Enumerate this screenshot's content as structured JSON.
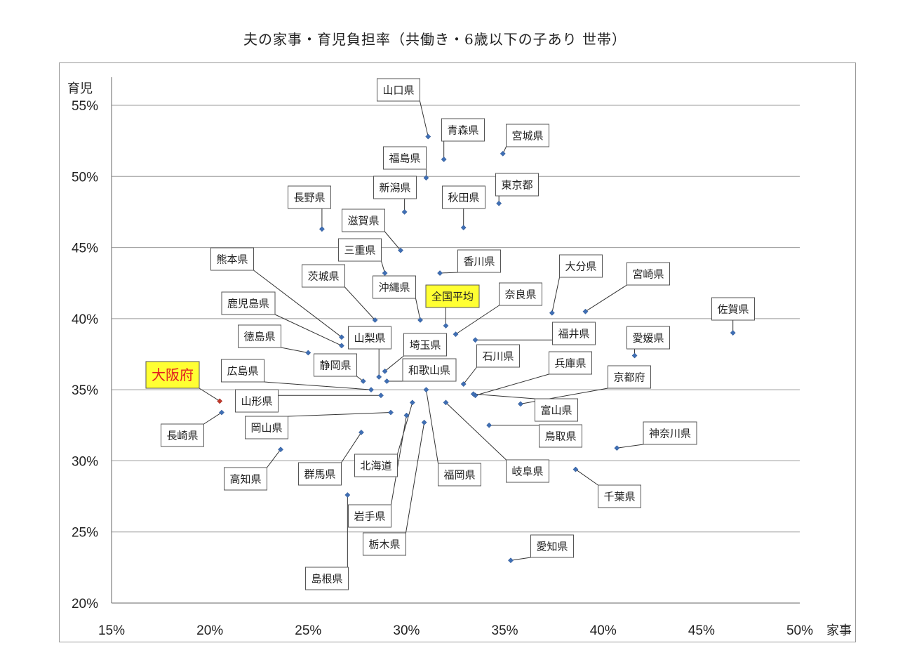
{
  "chart_data": {
    "type": "scatter",
    "title": "夫の家事・育児負担率（共働き・6歳以下の子あり 世帯）",
    "xlabel": "家事",
    "ylabel": "育児",
    "xlim": [
      15,
      50
    ],
    "ylim": [
      20,
      55
    ],
    "x_ticks": [
      15,
      20,
      25,
      30,
      35,
      40,
      45,
      50
    ],
    "y_ticks": [
      20,
      25,
      30,
      35,
      40,
      45,
      50,
      55
    ],
    "x_tick_labels": [
      "15%",
      "20%",
      "25%",
      "30%",
      "35%",
      "40%",
      "45%",
      "50%"
    ],
    "y_tick_labels": [
      "20%",
      "25%",
      "30%",
      "35%",
      "40%",
      "45%",
      "50%",
      "55%"
    ],
    "grid": "horizontal",
    "points": [
      {
        "name": "山口県",
        "x": 31.1,
        "y": 52.8
      },
      {
        "name": "青森県",
        "x": 31.9,
        "y": 51.2
      },
      {
        "name": "宮城県",
        "x": 34.9,
        "y": 51.6
      },
      {
        "name": "福島県",
        "x": 31.0,
        "y": 49.9
      },
      {
        "name": "新潟県",
        "x": 29.9,
        "y": 47.5
      },
      {
        "name": "東京都",
        "x": 34.7,
        "y": 48.1
      },
      {
        "name": "秋田県",
        "x": 32.9,
        "y": 46.4
      },
      {
        "name": "長野県",
        "x": 25.7,
        "y": 46.3
      },
      {
        "name": "滋賀県",
        "x": 29.7,
        "y": 44.8
      },
      {
        "name": "三重県",
        "x": 28.9,
        "y": 43.2
      },
      {
        "name": "香川県",
        "x": 31.7,
        "y": 43.2
      },
      {
        "name": "熊本県",
        "x": 26.7,
        "y": 38.7
      },
      {
        "name": "茨城県",
        "x": 28.4,
        "y": 39.9
      },
      {
        "name": "沖縄県",
        "x": 30.7,
        "y": 39.9
      },
      {
        "name": "全国平均",
        "x": 32.0,
        "y": 39.5
      },
      {
        "name": "奈良県",
        "x": 32.5,
        "y": 38.9
      },
      {
        "name": "大分県",
        "x": 37.4,
        "y": 40.4
      },
      {
        "name": "宮崎県",
        "x": 39.1,
        "y": 40.5
      },
      {
        "name": "佐賀県",
        "x": 46.6,
        "y": 39.0
      },
      {
        "name": "鹿児島県",
        "x": 26.7,
        "y": 38.1
      },
      {
        "name": "徳島県",
        "x": 25.0,
        "y": 37.6
      },
      {
        "name": "山梨県",
        "x": 28.6,
        "y": 35.9
      },
      {
        "name": "埼玉県",
        "x": 28.9,
        "y": 36.3
      },
      {
        "name": "静岡県",
        "x": 27.8,
        "y": 35.6
      },
      {
        "name": "和歌山県",
        "x": 29.0,
        "y": 35.6
      },
      {
        "name": "福井県",
        "x": 33.5,
        "y": 38.5
      },
      {
        "name": "石川県",
        "x": 32.9,
        "y": 35.4
      },
      {
        "name": "愛媛県",
        "x": 41.6,
        "y": 37.4
      },
      {
        "name": "兵庫県",
        "x": 33.5,
        "y": 34.6
      },
      {
        "name": "京都府",
        "x": 35.8,
        "y": 34.0
      },
      {
        "name": "大阪府",
        "x": 20.5,
        "y": 34.2
      },
      {
        "name": "広島県",
        "x": 28.2,
        "y": 35.0
      },
      {
        "name": "山形県",
        "x": 28.7,
        "y": 34.6
      },
      {
        "name": "長崎県",
        "x": 20.6,
        "y": 33.4
      },
      {
        "name": "富山県",
        "x": 33.4,
        "y": 34.7
      },
      {
        "name": "岡山県",
        "x": 29.2,
        "y": 33.4
      },
      {
        "name": "鳥取県",
        "x": 34.2,
        "y": 32.5
      },
      {
        "name": "神奈川県",
        "x": 40.7,
        "y": 30.9
      },
      {
        "name": "高知県",
        "x": 23.6,
        "y": 30.8
      },
      {
        "name": "群馬県",
        "x": 27.7,
        "y": 32.0
      },
      {
        "name": "北海道",
        "x": 30.3,
        "y": 34.1
      },
      {
        "name": "福岡県",
        "x": 31.0,
        "y": 35.0
      },
      {
        "name": "岐阜県",
        "x": 32.0,
        "y": 34.1
      },
      {
        "name": "千葉県",
        "x": 38.6,
        "y": 29.4
      },
      {
        "name": "岩手県",
        "x": 30.0,
        "y": 33.2
      },
      {
        "name": "栃木県",
        "x": 30.9,
        "y": 32.7
      },
      {
        "name": "島根県",
        "x": 27.0,
        "y": 27.6
      },
      {
        "name": "愛知県",
        "x": 35.3,
        "y": 23.0
      }
    ]
  },
  "colors": {
    "point": "#3f6fb5",
    "special_point": "#c0392b",
    "highlight_box": "#ffff33",
    "special_text": "#e02020",
    "grid": "#9a9a9a"
  }
}
